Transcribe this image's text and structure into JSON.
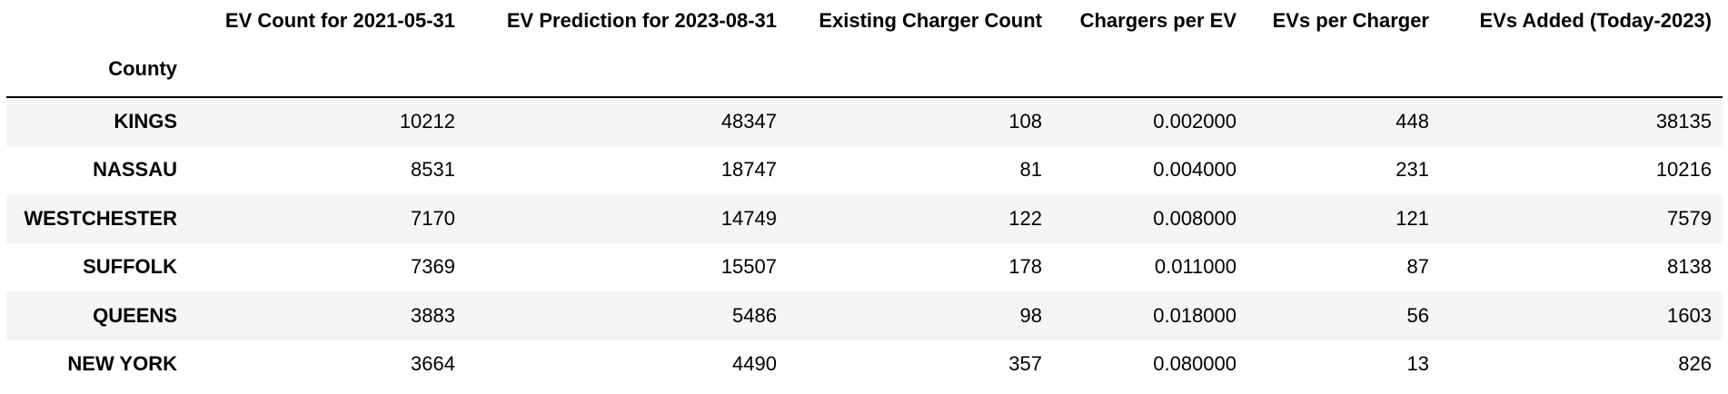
{
  "table": {
    "index_name": "County",
    "columns": [
      "EV Count for 2021-05-31",
      "EV Prediction for 2023-08-31",
      "Existing Charger Count",
      "Chargers per EV",
      "EVs per Charger",
      "EVs Added (Today-2023)"
    ],
    "rows": [
      {
        "county": "KINGS",
        "values": [
          "10212",
          "48347",
          "108",
          "0.002000",
          "448",
          "38135"
        ]
      },
      {
        "county": "NASSAU",
        "values": [
          "8531",
          "18747",
          "81",
          "0.004000",
          "231",
          "10216"
        ]
      },
      {
        "county": "WESTCHESTER",
        "values": [
          "7170",
          "14749",
          "122",
          "0.008000",
          "121",
          "7579"
        ]
      },
      {
        "county": "SUFFOLK",
        "values": [
          "7369",
          "15507",
          "178",
          "0.011000",
          "87",
          "8138"
        ]
      },
      {
        "county": "QUEENS",
        "values": [
          "3883",
          "5486",
          "98",
          "0.018000",
          "56",
          "1603"
        ]
      },
      {
        "county": "NEW YORK",
        "values": [
          "3664",
          "4490",
          "357",
          "0.080000",
          "13",
          "826"
        ]
      }
    ]
  }
}
